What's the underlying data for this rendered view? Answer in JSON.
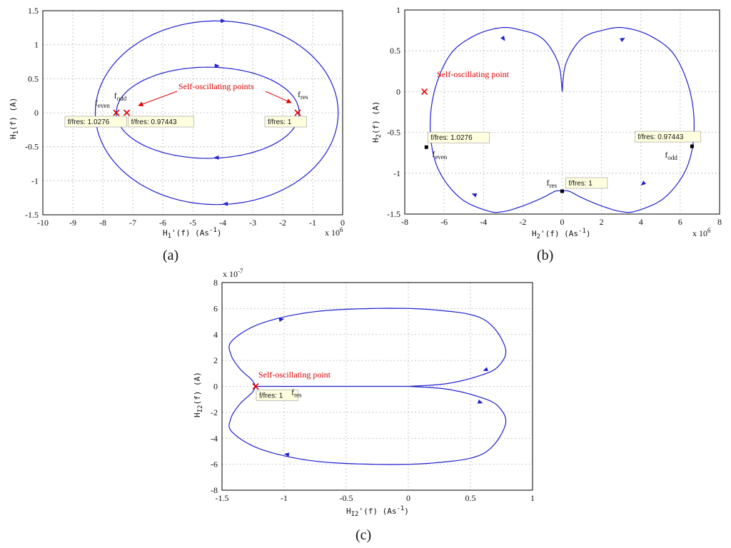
{
  "colors": {
    "curve": "#1f1fd0",
    "marker": "#e00000",
    "grid": "#b8b8b8",
    "tip_bg": "#ffffe0"
  },
  "chart_data": [
    {
      "type": "line",
      "panel_label": "(a)",
      "xlabel": "H",
      "xlabel_sub": "1",
      "xlabel_rest": "'(f)  (As",
      "xlabel_exp": "-1",
      "xlabel_close": ")",
      "ylabel": "H",
      "ylabel_sub": "1",
      "ylabel_rest": "(f)  (A)",
      "x_multiplier": "x 10",
      "x_multiplier_exp": "6",
      "xlim": [
        -10,
        0
      ],
      "ylim": [
        -1.5,
        1.5
      ],
      "xticks": [
        -10,
        -9,
        -8,
        -7,
        -6,
        -5,
        -4,
        -3,
        -2,
        -1,
        0
      ],
      "yticks": [
        -1.5,
        -1,
        -0.5,
        0,
        0.5,
        1,
        1.5
      ],
      "series": [
        {
          "ellipse": {
            "cx": -4.5,
            "cy": 0.0,
            "rx": 3.05,
            "ry": 0.67
          }
        },
        {
          "ellipse": {
            "cx": -4.2,
            "cy": 0.0,
            "rx": 4.05,
            "ry": 1.35
          }
        }
      ],
      "arrows": [
        {
          "x": -3.9,
          "y": 1.35,
          "dir": 1
        },
        {
          "x": -4.1,
          "y": 0.69,
          "dir": 1
        },
        {
          "x": -4.3,
          "y": -0.66,
          "dir": -1
        },
        {
          "x": -4.0,
          "y": -1.34,
          "dir": -1
        }
      ],
      "markers": [
        {
          "x": -7.55,
          "y": 0,
          "label": "f/fres: 1.0276",
          "sym": "f",
          "sym_sub": "even"
        },
        {
          "x": -7.2,
          "y": 0,
          "label": "f/fres: 0.97443",
          "sym": "f",
          "sym_sub": "odd"
        },
        {
          "x": -1.5,
          "y": 0,
          "label": "f/fres: 1",
          "sym": "f",
          "sym_sub": "res"
        }
      ],
      "annotation": "Self-oscillating points"
    },
    {
      "type": "line",
      "panel_label": "(b)",
      "xlabel": "H",
      "xlabel_sub": "2",
      "xlabel_rest": "'(f)  (As",
      "xlabel_exp": "-1",
      "xlabel_close": ")",
      "ylabel": "H",
      "ylabel_sub": "2",
      "ylabel_rest": "(f)  (A)",
      "x_multiplier": "x 10",
      "x_multiplier_exp": "6",
      "xlim": [
        -8,
        8
      ],
      "ylim": [
        -1.5,
        1
      ],
      "xticks": [
        -8,
        -6,
        -4,
        -2,
        0,
        2,
        4,
        6,
        8
      ],
      "yticks": [
        -1.5,
        -1,
        -0.5,
        0,
        0.5,
        1
      ],
      "markers": [
        {
          "x": -6.9,
          "y": -0.68,
          "label": "f/fres: 1.0276",
          "sym": "f",
          "sym_sub": "even"
        },
        {
          "x": 6.6,
          "y": -0.67,
          "label": "f/fres: 0.97443",
          "sym": "f",
          "sym_sub": "odd"
        },
        {
          "x": 0,
          "y": -1.22,
          "label": "f/fres: 1",
          "sym": "f",
          "sym_sub": "res"
        }
      ],
      "self_point": {
        "x": -7.0,
        "y": 0.0
      },
      "annotation": "Self-oscillating point"
    },
    {
      "type": "line",
      "panel_label": "(c)",
      "xlabel": "H",
      "xlabel_sub": "I2",
      "xlabel_rest": "'(f)  (As",
      "xlabel_exp": "-1",
      "xlabel_close": ")",
      "ylabel": "H",
      "ylabel_sub": "I2",
      "ylabel_rest": "(f)  (A)",
      "y_multiplier": "x 10",
      "y_multiplier_exp": "-7",
      "xlim": [
        -1.5,
        1
      ],
      "ylim": [
        -8,
        8
      ],
      "xticks": [
        -1.5,
        -1,
        -0.5,
        0,
        0.5,
        1
      ],
      "yticks": [
        -8,
        -6,
        -4,
        -2,
        0,
        2,
        4,
        6,
        8
      ],
      "markers": [
        {
          "x": -1.23,
          "y": 0,
          "label": "f/fres: 1",
          "sym": "f",
          "sym_sub": "res"
        }
      ],
      "annotation": "Self-oscillating point"
    }
  ]
}
